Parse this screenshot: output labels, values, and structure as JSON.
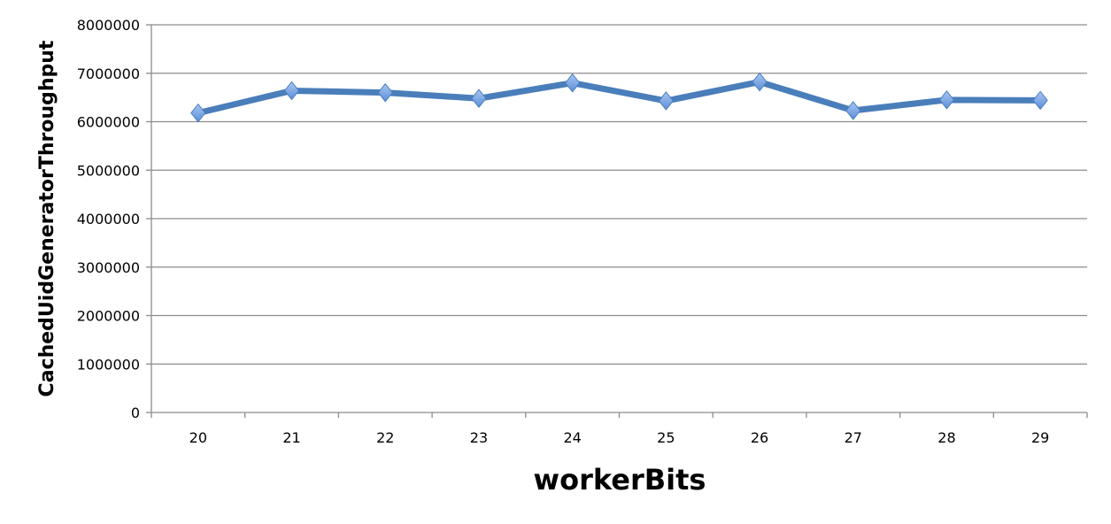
{
  "chart_data": {
    "type": "line",
    "title": "",
    "xlabel": "workerBits",
    "ylabel": "CachedUidGeneratorThroughput",
    "categories": [
      "20",
      "21",
      "22",
      "23",
      "24",
      "25",
      "26",
      "27",
      "28",
      "29"
    ],
    "series": [
      {
        "values": [
          6180000,
          6640000,
          6600000,
          6480000,
          6800000,
          6430000,
          6820000,
          6230000,
          6450000,
          6440000
        ],
        "color": "#4a7ebb",
        "marker": "diamond",
        "marker_color": "#6f9fe0"
      }
    ],
    "ylim": [
      0,
      8000000
    ],
    "yticks": [
      "0",
      "1000000",
      "2000000",
      "3000000",
      "4000000",
      "5000000",
      "6000000",
      "7000000",
      "8000000"
    ],
    "grid": true,
    "legend": "none"
  }
}
